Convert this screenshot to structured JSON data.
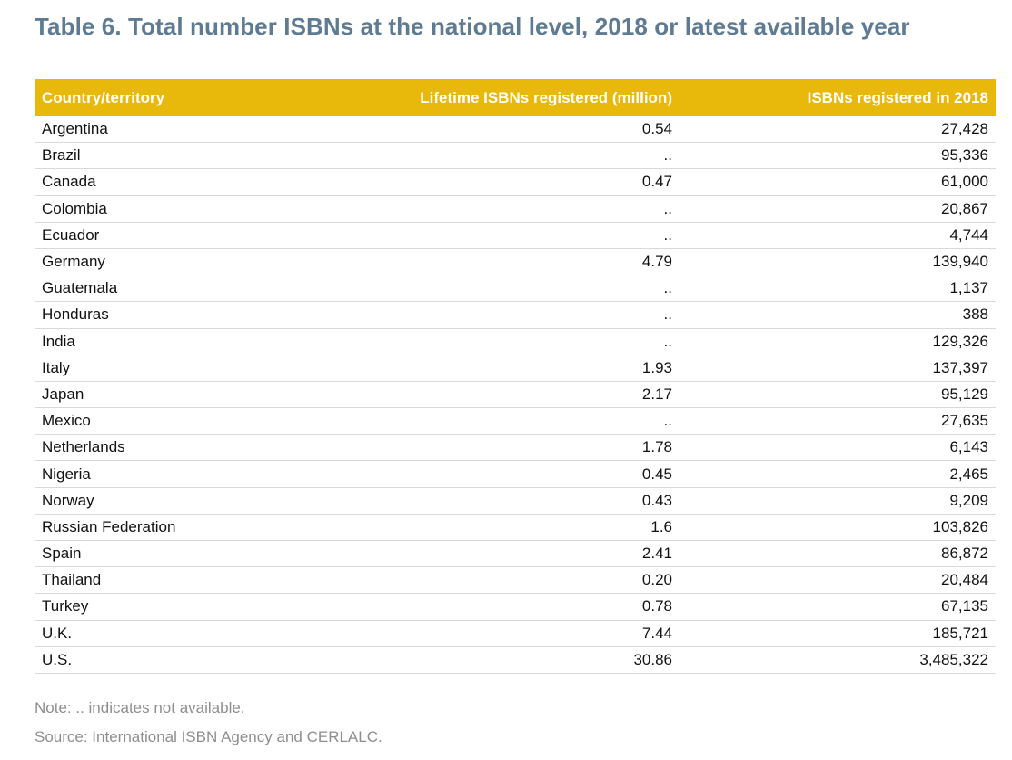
{
  "title": "Table 6. Total number ISBNs at the national level, 2018 or latest available year",
  "table": {
    "headers": [
      "Country/territory",
      "Lifetime ISBNs registered (million)",
      "ISBNs registered in 2018"
    ],
    "rows": [
      [
        "Argentina",
        "0.54",
        "27,428"
      ],
      [
        "Brazil",
        "..",
        "95,336"
      ],
      [
        "Canada",
        "0.47",
        "61,000"
      ],
      [
        "Colombia",
        "..",
        "20,867"
      ],
      [
        "Ecuador",
        "..",
        "4,744"
      ],
      [
        "Germany",
        "4.79",
        "139,940"
      ],
      [
        "Guatemala",
        "..",
        "1,137"
      ],
      [
        "Honduras",
        "..",
        "388"
      ],
      [
        "India",
        "..",
        "129,326"
      ],
      [
        "Italy",
        "1.93",
        "137,397"
      ],
      [
        "Japan",
        "2.17",
        "95,129"
      ],
      [
        "Mexico",
        "..",
        "27,635"
      ],
      [
        "Netherlands",
        "1.78",
        "6,143"
      ],
      [
        "Nigeria",
        "0.45",
        "2,465"
      ],
      [
        "Norway",
        "0.43",
        "9,209"
      ],
      [
        "Russian Federation",
        "1.6",
        "103,826"
      ],
      [
        "Spain",
        "2.41",
        "86,872"
      ],
      [
        "Thailand",
        "0.20",
        "20,484"
      ],
      [
        "Turkey",
        "0.78",
        "67,135"
      ],
      [
        "U.K.",
        "7.44",
        "185,721"
      ],
      [
        "U.S.",
        "30.86",
        "3,485,322"
      ]
    ]
  },
  "note": "Note: .. indicates not available.",
  "source": "Source: International ISBN Agency and CERLALC.",
  "colors": {
    "title": "#5f7b92",
    "header_bg": "#e8b80a",
    "header_text": "#ffffff",
    "note_text": "#8e8e8e"
  }
}
